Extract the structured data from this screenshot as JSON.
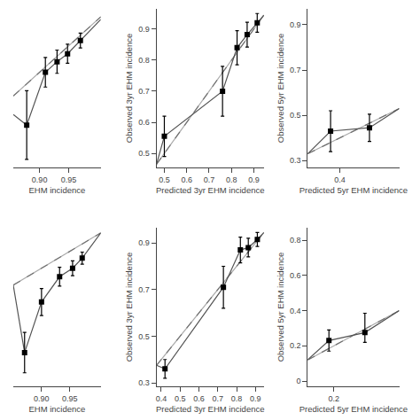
{
  "chart_data": [
    {
      "type": "scatter",
      "xlabel": "EHM incidence",
      "xlim": [
        0.855,
        1.005
      ],
      "ylim": [
        0.72,
        1.02
      ],
      "xticks": [
        {
          "value": 0.9,
          "label": "0.90"
        },
        {
          "value": 0.95,
          "label": "0.95"
        }
      ],
      "grid": false,
      "tick_labels": "x",
      "series": [
        {
          "type": "line",
          "color": "#aaaaaa",
          "line_style": "solid",
          "x": [
            0.855,
            1.005
          ],
          "values": [
            0.855,
            1.005
          ]
        },
        {
          "type": "line",
          "color": "#555555",
          "line_style": "solid",
          "x": [
            0.855,
            0.878,
            0.91,
            0.93,
            0.948,
            0.97,
            1.005
          ],
          "values": [
            0.82,
            0.8,
            0.9,
            0.92,
            0.935,
            0.96,
            1.0
          ]
        },
        {
          "type": "line",
          "color": "#555555",
          "line_style": "dashed",
          "x": [
            0.855,
            1.005
          ],
          "values": [
            0.855,
            1.005
          ]
        },
        {
          "type": "scatter",
          "color": "#000000",
          "marker": "square",
          "x": [
            0.878,
            0.91,
            0.93,
            0.948,
            0.97
          ],
          "values": [
            0.8,
            0.9,
            0.92,
            0.935,
            0.96
          ],
          "err_low": [
            0.065,
            0.028,
            0.022,
            0.018,
            0.014
          ],
          "err_high": [
            0.065,
            0.028,
            0.022,
            0.018,
            0.014
          ]
        }
      ]
    },
    {
      "type": "scatter",
      "xlabel": "Predicted 3yr EHM incidence",
      "ylabel": "Observed 3yr EHM incidence",
      "xlim": [
        0.465,
        0.945
      ],
      "ylim": [
        0.455,
        0.965
      ],
      "xticks": [
        0.5,
        0.6,
        0.7,
        0.8,
        0.9
      ],
      "yticks": [
        0.5,
        0.6,
        0.7,
        0.8,
        0.9
      ],
      "grid": false,
      "series": [
        {
          "type": "line",
          "color": "#aaaaaa",
          "line_style": "solid",
          "x": [
            0.465,
            0.945
          ],
          "values": [
            0.465,
            0.945
          ]
        },
        {
          "type": "line",
          "color": "#555555",
          "line_style": "solid",
          "x": [
            0.465,
            0.5,
            0.76,
            0.825,
            0.87,
            0.915,
            0.945
          ],
          "values": [
            0.465,
            0.555,
            0.7,
            0.84,
            0.882,
            0.92,
            0.945
          ]
        },
        {
          "type": "line",
          "color": "#555555",
          "line_style": "dashed",
          "x": [
            0.465,
            0.945
          ],
          "values": [
            0.465,
            0.945
          ]
        },
        {
          "type": "scatter",
          "color": "#000000",
          "marker": "square",
          "x": [
            0.5,
            0.76,
            0.825,
            0.87,
            0.915
          ],
          "values": [
            0.555,
            0.7,
            0.84,
            0.882,
            0.92
          ],
          "err_low": [
            0.065,
            0.08,
            0.055,
            0.04,
            0.03
          ],
          "err_high": [
            0.065,
            0.08,
            0.055,
            0.04,
            0.03
          ]
        }
      ]
    },
    {
      "type": "scatter",
      "xlabel": "Predicted 5yr EHM incidence",
      "ylabel": "Observed 5yr EHM incidence",
      "xlim": [
        0.33,
        0.53
      ],
      "ylim": [
        0.27,
        0.97
      ],
      "xticks": [
        0.4
      ],
      "yticks": [
        0.3,
        0.5,
        0.7,
        0.9
      ],
      "grid": false,
      "series": [
        {
          "type": "line",
          "color": "#aaaaaa",
          "line_style": "solid",
          "x": [
            0.33,
            0.53
          ],
          "values": [
            0.33,
            0.53
          ]
        },
        {
          "type": "line",
          "color": "#555555",
          "line_style": "solid",
          "x": [
            0.33,
            0.38,
            0.465,
            0.53
          ],
          "values": [
            0.33,
            0.43,
            0.445,
            0.53
          ]
        },
        {
          "type": "line",
          "color": "#555555",
          "line_style": "dashed",
          "x": [
            0.33,
            0.53
          ],
          "values": [
            0.33,
            0.53
          ]
        },
        {
          "type": "scatter",
          "color": "#000000",
          "marker": "square",
          "x": [
            0.38,
            0.465
          ],
          "values": [
            0.43,
            0.445
          ],
          "err_low": [
            0.09,
            0.06
          ],
          "err_high": [
            0.09,
            0.06
          ]
        }
      ]
    },
    {
      "type": "scatter",
      "xlabel": "EHM incidence",
      "xlim": [
        0.85,
        1.005
      ],
      "ylim": [
        0.55,
        1.02
      ],
      "xticks": [
        {
          "value": 0.9,
          "label": "0.90"
        },
        {
          "value": 0.95,
          "label": "0.95"
        }
      ],
      "grid": false,
      "tick_labels": "x",
      "series": [
        {
          "type": "line",
          "color": "#aaaaaa",
          "line_style": "solid",
          "x": [
            0.85,
            1.005
          ],
          "values": [
            0.85,
            1.005
          ]
        },
        {
          "type": "line",
          "color": "#555555",
          "line_style": "solid",
          "x": [
            0.85,
            0.87,
            0.9,
            0.932,
            0.955,
            0.972,
            1.005
          ],
          "values": [
            0.85,
            0.65,
            0.8,
            0.875,
            0.9,
            0.93,
            1.005
          ]
        },
        {
          "type": "line",
          "color": "#555555",
          "line_style": "dashed",
          "x": [
            0.85,
            1.005
          ],
          "values": [
            0.85,
            1.005
          ]
        },
        {
          "type": "scatter",
          "color": "#000000",
          "marker": "square",
          "x": [
            0.87,
            0.9,
            0.932,
            0.955,
            0.972
          ],
          "values": [
            0.65,
            0.8,
            0.875,
            0.9,
            0.93
          ],
          "err_low": [
            0.06,
            0.04,
            0.028,
            0.022,
            0.018
          ],
          "err_high": [
            0.06,
            0.04,
            0.028,
            0.022,
            0.018
          ]
        }
      ]
    },
    {
      "type": "scatter",
      "xlabel": "Predicted 3yr EHM incidence",
      "ylabel": "Observed 3yr EHM incidence",
      "xlim": [
        0.375,
        0.945
      ],
      "ylim": [
        0.285,
        0.965
      ],
      "xticks": [
        0.4,
        0.5,
        0.6,
        0.7,
        0.8,
        0.9
      ],
      "yticks": [
        0.3,
        0.5,
        0.7,
        0.9
      ],
      "grid": false,
      "series": [
        {
          "type": "line",
          "color": "#aaaaaa",
          "line_style": "solid",
          "x": [
            0.375,
            0.945
          ],
          "values": [
            0.375,
            0.945
          ]
        },
        {
          "type": "line",
          "color": "#555555",
          "line_style": "solid",
          "x": [
            0.375,
            0.42,
            0.73,
            0.82,
            0.862,
            0.91,
            0.945
          ],
          "values": [
            0.375,
            0.36,
            0.71,
            0.87,
            0.88,
            0.915,
            0.945
          ]
        },
        {
          "type": "line",
          "color": "#555555",
          "line_style": "dashed",
          "x": [
            0.375,
            0.945
          ],
          "values": [
            0.375,
            0.945
          ]
        },
        {
          "type": "scatter",
          "color": "#000000",
          "marker": "square",
          "x": [
            0.42,
            0.73,
            0.82,
            0.862,
            0.91
          ],
          "values": [
            0.36,
            0.71,
            0.87,
            0.88,
            0.915
          ],
          "err_low": [
            0.04,
            0.09,
            0.055,
            0.04,
            0.03
          ],
          "err_high": [
            0.04,
            0.09,
            0.055,
            0.04,
            0.03
          ]
        }
      ]
    },
    {
      "type": "scatter",
      "xlabel": "Predicted 5yr EHM incidence",
      "ylabel": "Observed 5yr EHM incidence",
      "xlim": [
        0.12,
        0.4
      ],
      "ylim": [
        -0.03,
        0.87
      ],
      "xticks": [
        0.2
      ],
      "yticks": [
        0,
        0.2,
        0.4,
        0.6,
        0.8
      ],
      "grid": false,
      "series": [
        {
          "type": "line",
          "color": "#aaaaaa",
          "line_style": "solid",
          "x": [
            0.12,
            0.4
          ],
          "values": [
            0.12,
            0.4
          ]
        },
        {
          "type": "line",
          "color": "#555555",
          "line_style": "solid",
          "x": [
            0.12,
            0.185,
            0.295,
            0.4
          ],
          "values": [
            0.12,
            0.23,
            0.275,
            0.4
          ]
        },
        {
          "type": "line",
          "color": "#555555",
          "line_style": "dashed",
          "x": [
            0.12,
            0.4
          ],
          "values": [
            0.12,
            0.4
          ]
        },
        {
          "type": "scatter",
          "color": "#000000",
          "marker": "square",
          "x": [
            0.185,
            0.295
          ],
          "values": [
            0.23,
            0.275
          ],
          "err_low": [
            0.06,
            0.055
          ],
          "err_high": [
            0.06,
            0.11
          ]
        }
      ]
    }
  ]
}
